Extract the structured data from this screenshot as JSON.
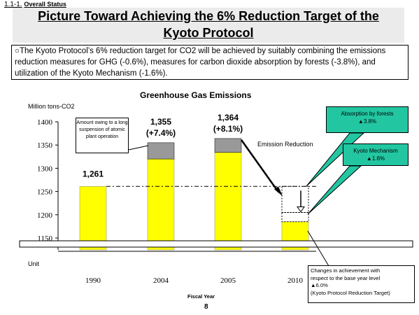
{
  "header": {
    "section_number": "1.1-1.",
    "section_label": "Overall Status",
    "title_line1": "Picture Toward Achieving the 6% Reduction Target of the",
    "title_line2": "Kyoto Protocol"
  },
  "summary": {
    "bullet": "○",
    "text": "The Kyoto Protocol’s 6% reduction target for CO2 will be achieved by suitably combining the emissions reduction measures for GHG (-0.6%), measures for carbon dioxide absorption by forests (-3.8%), and utilization of the Kyoto Mechanism (-1.6%)."
  },
  "chart_data": {
    "type": "bar",
    "title": "Greenhouse Gas Emissions",
    "ylabel": "Million tons-CO2",
    "unit_label": "Unit",
    "xlabel": "Fiscal Year",
    "categories": [
      "1990",
      "2004",
      "2005",
      "2010"
    ],
    "yticks": [
      1150,
      1200,
      1250,
      1300,
      1350,
      1400
    ],
    "ylim": [
      1130,
      1400
    ],
    "series": [
      {
        "name": "",
        "values": [
          1261,
          1320,
          1334,
          1185
        ],
        "color": "#ffff00"
      },
      {
        "name": "",
        "values": [
          0,
          35,
          30,
          0
        ],
        "color": "#999999"
      }
    ],
    "bar_labels": [
      {
        "line1": "1,261",
        "line2": ""
      },
      {
        "line1": "1,355",
        "line2": "(+7.4%)"
      },
      {
        "line1": "1,364",
        "line2": "(+8.1%)"
      },
      {
        "line1": "",
        "line2": ""
      }
    ],
    "reference_level": 1261,
    "absorption_range": [
      1205,
      1261
    ],
    "kyoto_range": [
      1185,
      1205
    ],
    "annotations": {
      "nuclear_note": "Amount owing to a long suspension of atomic plant operation",
      "emission_reduction": "Emission Reduction",
      "forests_title": "Absorption by forests",
      "forests_value": "▲3.8%",
      "kyoto_title": "Kyoto Mechanism",
      "kyoto_value": "▲1.6%",
      "achieve_line1": "Changes in achievement with",
      "achieve_line2": "respect to the base year level",
      "achieve_line3": "▲6.0%",
      "achieve_line4": "(Kyoto Protocol Reduction Target)"
    }
  },
  "page_number": "8",
  "colors": {
    "callout": "#22c7a2",
    "bar_primary": "#ffff00",
    "bar_stack": "#999999"
  }
}
